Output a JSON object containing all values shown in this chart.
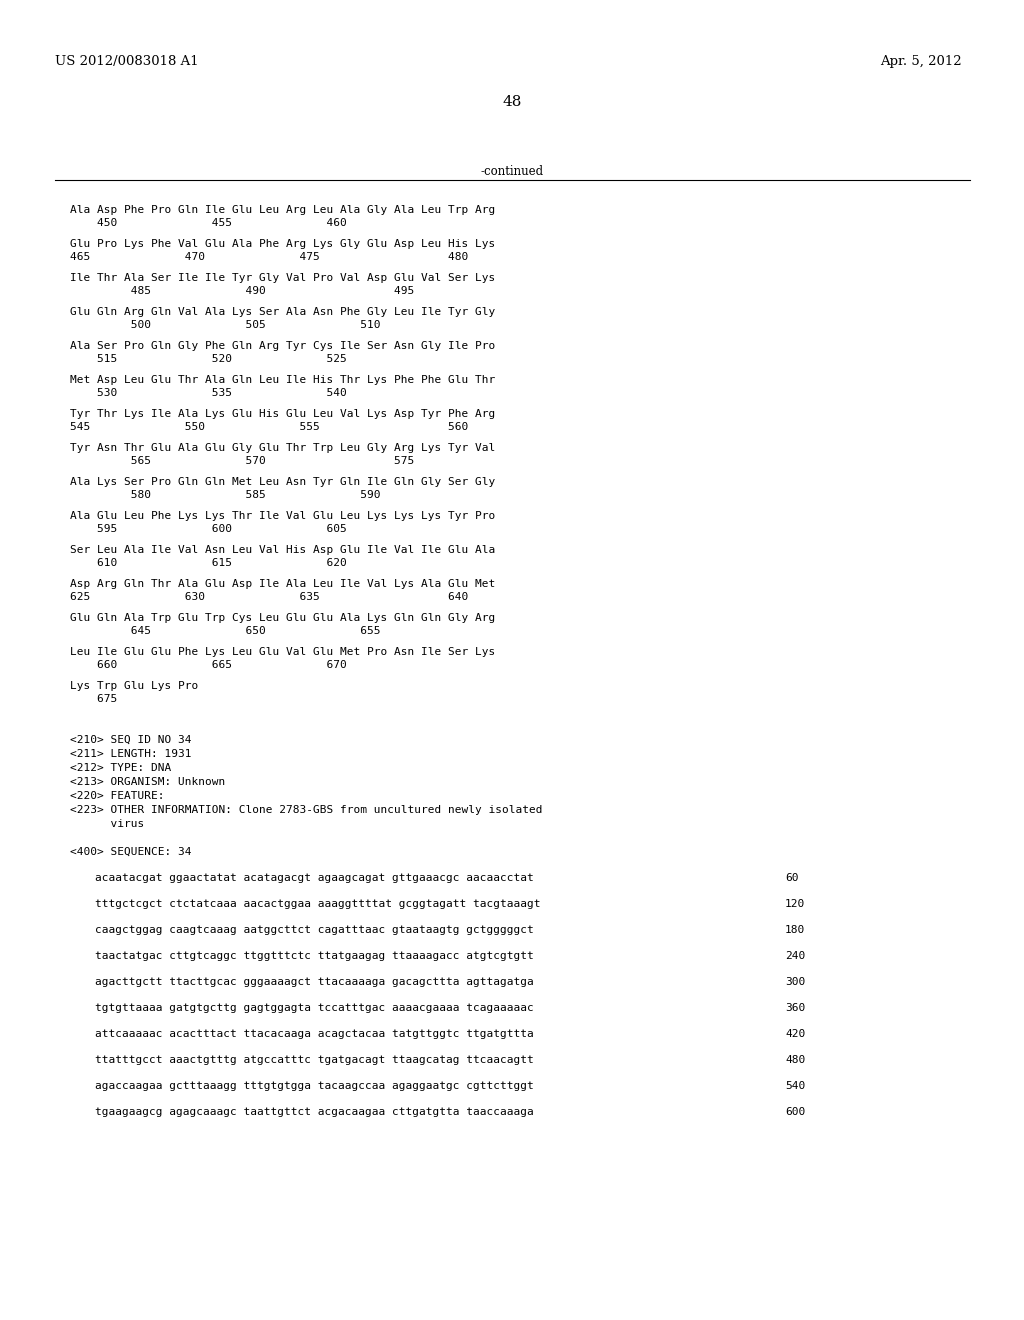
{
  "header_left": "US 2012/0083018 A1",
  "header_right": "Apr. 5, 2012",
  "page_number": "48",
  "continued_label": "-continued",
  "background_color": "#ffffff",
  "text_color": "#000000",
  "font_size": 8.5,
  "mono_font_size": 8.0,
  "header_font_size": 9.5,
  "page_num_font_size": 11,
  "protein_lines": [
    [
      "Ala Asp Phe Pro Gln Ile Glu Leu Arg Leu Ala Gly Ala Leu Trp Arg",
      "    450              455              460"
    ],
    [
      "Glu Pro Lys Phe Val Glu Ala Phe Arg Lys Gly Glu Asp Leu His Lys",
      "465              470              475                   480"
    ],
    [
      "Ile Thr Ala Ser Ile Ile Tyr Gly Val Pro Val Asp Glu Val Ser Lys",
      "         485              490                   495"
    ],
    [
      "Glu Gln Arg Gln Val Ala Lys Ser Ala Asn Phe Gly Leu Ile Tyr Gly",
      "         500              505              510"
    ],
    [
      "Ala Ser Pro Gln Gly Phe Gln Arg Tyr Cys Ile Ser Asn Gly Ile Pro",
      "    515              520              525"
    ],
    [
      "Met Asp Leu Glu Thr Ala Gln Leu Ile His Thr Lys Phe Phe Glu Thr",
      "    530              535              540"
    ],
    [
      "Tyr Thr Lys Ile Ala Lys Glu His Glu Leu Val Lys Asp Tyr Phe Arg\nTyr Thr Lys Ile Ala Lys Glu His Glu Leu Val Lys Asp Tyr Phe Arg",
      "545              550              555                   560"
    ],
    [
      "Tyr Asn Thr Glu Ala Glu Gly Glu Thr Trp Leu Glu Arg Lys Tyr Val",
      "         565              570                   575"
    ],
    [
      "Ala Lys Ser Pro Gln Gln Met Leu Asn Tyr Gln Ile Gln Gly Ser Gly",
      "         580              585              590"
    ],
    [
      "Ala Glu Leu Phe Lys Lys Thr Ile Val Glu Leu Lys Lys Lys Tyr Pro",
      "    595              600              605"
    ],
    [
      "Ser Leu Ala Ile Val Asn Leu Val His Asp Glu Ile Val Ile Glu Ala",
      "    610              615              620"
    ],
    [
      "Asp Arg Gln Thr Ala Glu Asp Ile Ala Leu Ile Val Lys Ala Glu Met",
      "625              630              635                   640"
    ],
    [
      "Glu Gln Ala Trp Glu Trp Cys Leu Glu Glu Ala Lys Gln Gln Gly Arg",
      "         645              650              655"
    ],
    [
      "Leu Ile Glu Glu Phe Lys Leu Glu Val Glu Met Pro Asn Ile Ser Lys",
      "    660              665              670"
    ],
    [
      "Lys Trp Glu Lys Pro",
      "    675"
    ]
  ],
  "metadata_lines": [
    "<210> SEQ ID NO 34",
    "<211> LENGTH: 1931",
    "<212> TYPE: DNA",
    "<213> ORGANISM: Unknown",
    "<220> FEATURE:",
    "<223> OTHER INFORMATION: Clone 2783-GBS from uncultured newly isolated",
    "      virus"
  ],
  "sequence_label": "<400> SEQUENCE: 34",
  "dna_lines": [
    [
      "acaatacgat ggaactatat acatagacgt agaagcagat gttgaaacgc aacaacctat",
      "60"
    ],
    [
      "tttgctcgct ctctatcaaa aacactggaa aaaggttttat gcggtagatt tacgtaaagt",
      "120"
    ],
    [
      "caagctggag caagtcaaag aatggcttct cagatttaac gtaataagtg gctgggggct",
      "180"
    ],
    [
      "taactatgac cttgtcaggc ttggtttctc ttatgaagag ttaaaagacc atgtcgtgtt",
      "240"
    ],
    [
      "agacttgctt ttacttgcac gggaaaagct ttacaaaaga gacagcttta agttagatga",
      "300"
    ],
    [
      "tgtgttaaaa gatgtgcttg gagtggagta tccatttgac aaaacgaaaa tcagaaaaac",
      "360"
    ],
    [
      "attcaaaaac acactttact ttacacaaga acagctacaa tatgttggtc ttgatgttta",
      "420"
    ],
    [
      "ttatttgcct aaactgtttg atgccatttc tgatgacagt ttaagcatag ttcaacagtt",
      "480"
    ],
    [
      "agaccaagaa gctttaaagg tttgtgtgga tacaagccaa agaggaatgc cgttcttggt",
      "540"
    ],
    [
      "tgaagaagcg agagcaaagc taattgttct acgacaagaa cttgatgtta taaccaaaga",
      "600"
    ]
  ]
}
